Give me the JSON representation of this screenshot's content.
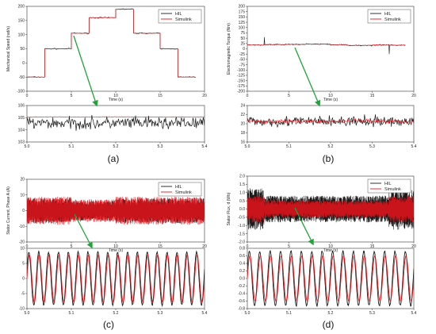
{
  "colors": {
    "hil": "#1a1a1a",
    "simulink": "#e8141b",
    "arrow": "#22a33a",
    "frame": "#333333"
  },
  "chart_data": [
    {
      "id": "a-main",
      "type": "line",
      "caption": "(a)",
      "xlabel": "Time (s)",
      "ylabel": "Mechanical Speed (rad/s)",
      "xlim": [
        0,
        20
      ],
      "ylim": [
        -100,
        200
      ],
      "xticks": [
        "0",
        "5",
        "10",
        "15",
        "20"
      ],
      "yticks": [
        "-100",
        "-50",
        "0",
        "50",
        "100",
        "150",
        "200"
      ],
      "legend": [
        "HIL",
        "Simulink"
      ],
      "legend_position": "top-right",
      "series": [
        {
          "name": "HIL",
          "x": [
            0,
            2,
            2,
            5,
            5,
            7,
            7,
            10,
            10,
            12,
            12,
            15,
            15,
            17,
            17,
            19
          ],
          "y": [
            -50,
            -50,
            50,
            50,
            105,
            105,
            160,
            160,
            190,
            190,
            105,
            105,
            50,
            50,
            -50,
            -50
          ]
        },
        {
          "name": "Simulink",
          "x": [
            0,
            2,
            2,
            5,
            5,
            7,
            7,
            10,
            10,
            12,
            12,
            15,
            15,
            17,
            17,
            19
          ],
          "y": [
            -50,
            -50,
            50,
            50,
            105,
            105,
            160,
            160,
            190,
            190,
            105,
            105,
            50,
            50,
            -50,
            -50
          ]
        }
      ]
    },
    {
      "id": "a-zoom",
      "type": "line",
      "xlim": [
        5,
        5.4
      ],
      "ylim": [
        102.5,
        106
      ],
      "xticks": [
        "5.0",
        "5.1",
        "5.2",
        "5.3",
        "5.4"
      ],
      "yticks": [
        "103",
        "104",
        "105",
        "106"
      ],
      "series": [
        {
          "name": "HIL",
          "mean": 104.3,
          "noise": 0.9
        },
        {
          "name": "Simulink",
          "mean": 104.9,
          "noise": 0.05
        }
      ]
    },
    {
      "id": "b-main",
      "type": "line",
      "caption": "(b)",
      "xlabel": "Time (s)",
      "ylabel": "Electromagnetic Torque (Nm)",
      "xlim": [
        0,
        20
      ],
      "ylim": [
        -200,
        200
      ],
      "xticks": [
        "0",
        "5",
        "10",
        "15",
        "20"
      ],
      "yticks": [
        "-200",
        "-175",
        "-150",
        "-125",
        "-100",
        "-75",
        "-50",
        "-25",
        "0",
        "25",
        "50",
        "75",
        "100",
        "125",
        "150",
        "175",
        "200"
      ],
      "legend": [
        "HIL",
        "Simulink"
      ],
      "legend_position": "top-right",
      "series": [
        {
          "name": "HIL",
          "x": [
            0,
            2,
            2,
            5,
            5,
            7,
            7,
            10,
            10,
            12,
            12,
            15,
            15,
            17,
            17,
            19
          ],
          "y": [
            18,
            18,
            20,
            20,
            21,
            21,
            22,
            22,
            19,
            19,
            16,
            16,
            18,
            18,
            17,
            17
          ]
        },
        {
          "name": "Simulink",
          "x": [
            0,
            2,
            2,
            5,
            5,
            7,
            7,
            10,
            10,
            12,
            12,
            15,
            15,
            17,
            17,
            19
          ],
          "y": [
            18,
            18,
            20,
            20,
            21,
            21,
            22,
            22,
            19,
            19,
            16,
            16,
            18,
            18,
            17,
            17
          ]
        }
      ]
    },
    {
      "id": "b-zoom",
      "type": "line",
      "xlim": [
        5,
        5.4
      ],
      "ylim": [
        16,
        24
      ],
      "xticks": [
        "5.0",
        "5.1",
        "5.2",
        "5.3",
        "5.4"
      ],
      "yticks": [
        "16",
        "18",
        "20",
        "22",
        "24"
      ],
      "series": [
        {
          "name": "HIL",
          "mean": 20.5,
          "noise": 1.7
        },
        {
          "name": "Simulink",
          "mean": 20.5,
          "noise": 0.7
        }
      ]
    },
    {
      "id": "c-main",
      "type": "line",
      "caption": "(c)",
      "xlabel": "Time (s)",
      "ylabel": "Stator Current, Phase A (A)",
      "xlim": [
        0,
        20
      ],
      "ylim": [
        -20,
        20
      ],
      "xticks": [
        "0",
        "5",
        "10",
        "15",
        "20"
      ],
      "yticks": [
        "-20",
        "-10",
        "0",
        "10",
        "20"
      ],
      "legend": [
        "HIL",
        "Simulink"
      ],
      "legend_position": "top-right",
      "series": [
        {
          "name": "HIL",
          "amplitude": 8
        },
        {
          "name": "Simulink",
          "amplitude": 9
        }
      ]
    },
    {
      "id": "c-zoom",
      "type": "line",
      "xlim": [
        5,
        5.4
      ],
      "ylim": [
        -12,
        12
      ],
      "xticks": [
        "5.0",
        "5.1",
        "5.2",
        "5.3",
        "5.4"
      ],
      "yticks": [
        "-10",
        "-5",
        "0",
        "5",
        "10"
      ],
      "series": [
        {
          "name": "HIL",
          "amplitude": 10.5,
          "cycles": 18
        },
        {
          "name": "Simulink",
          "amplitude": 9.5,
          "cycles": 18
        }
      ]
    },
    {
      "id": "d-main",
      "type": "line",
      "caption": "(d)",
      "xlabel": "Time (s)",
      "ylabel": "Stator Flux, d (Wb)",
      "xlim": [
        0,
        20
      ],
      "ylim": [
        -2,
        2
      ],
      "xticks": [
        "0",
        "5",
        "10",
        "15",
        "20"
      ],
      "yticks": [
        "-2.0",
        "-1.5",
        "-1.0",
        "-0.5",
        "0.0",
        "0.5",
        "1.0",
        "1.5",
        "2.0"
      ],
      "legend": [
        "HIL",
        "Simulink"
      ],
      "legend_position": "top-right",
      "series": [
        {
          "name": "HIL",
          "amplitude": 0.9
        },
        {
          "name": "Simulink",
          "amplitude": 0.6
        }
      ]
    },
    {
      "id": "d-zoom",
      "type": "line",
      "xlim": [
        5,
        5.4
      ],
      "ylim": [
        -0.8,
        0.8
      ],
      "xticks": [
        "5.0",
        "5.1",
        "5.2",
        "5.3",
        "5.4"
      ],
      "yticks": [
        "-0.8",
        "-0.6",
        "-0.4",
        "-0.2",
        "0.0",
        "0.2",
        "0.4",
        "0.6",
        "0.8"
      ],
      "series": [
        {
          "name": "HIL",
          "amplitude": 0.72,
          "cycles": 16
        },
        {
          "name": "Simulink",
          "amplitude": 0.6,
          "cycles": 16
        }
      ]
    }
  ]
}
